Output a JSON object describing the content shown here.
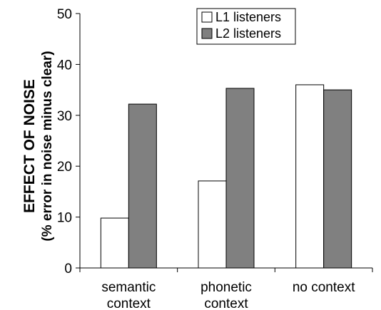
{
  "chart_data": {
    "type": "bar",
    "ylabel": "EFFECT OF NOISE",
    "ylabel_sub": "(% error in noise minus clear)",
    "ylim": [
      0,
      50
    ],
    "yticks": [
      "0",
      "10",
      "20",
      "30",
      "40",
      "50"
    ],
    "grid": false,
    "legend_position": "top-right",
    "categories": [
      [
        "semantic",
        "context"
      ],
      [
        "phonetic",
        "context"
      ],
      [
        "no context"
      ]
    ],
    "series": [
      {
        "name": "L1 listeners",
        "color": "#ffffff",
        "values": [
          9.8,
          17.1,
          36.0
        ]
      },
      {
        "name": "L2 listeners",
        "color": "#808080",
        "values": [
          32.2,
          35.3,
          35.0
        ]
      }
    ]
  }
}
